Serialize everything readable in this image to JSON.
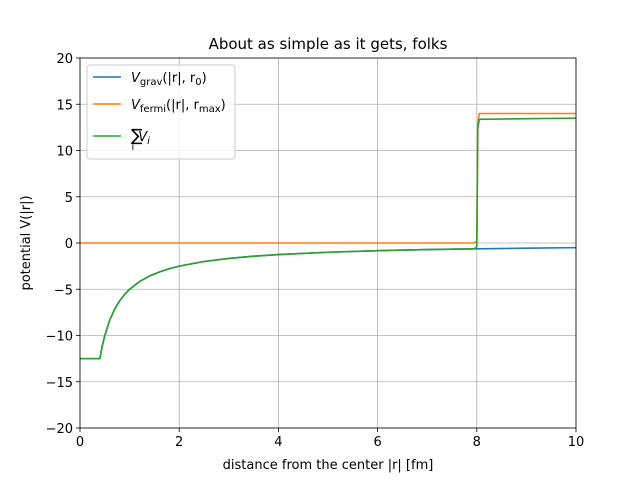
{
  "chart_data": {
    "type": "line",
    "title": "About as simple as it gets, folks",
    "xlabel": "distance from the center |r| [fm]",
    "ylabel": "potential V(|r|)",
    "xlim": [
      0,
      10
    ],
    "ylim": [
      -20,
      20
    ],
    "xticks": [
      0,
      2,
      4,
      6,
      8,
      10
    ],
    "yticks": [
      -20,
      -15,
      -10,
      -5,
      0,
      5,
      10,
      15,
      20
    ],
    "grid": true,
    "legend_position": "upper-left",
    "series": [
      {
        "name": "V_grav(|r|, r_0)",
        "legend": {
          "base": "V",
          "sub": "grav",
          "args": "(|r|, r",
          "argsub": "0",
          "close": ")"
        },
        "color": "#1f77b4",
        "x": [
          0,
          0.4,
          0.45,
          0.5,
          0.6,
          0.7,
          0.8,
          0.9,
          1.0,
          1.2,
          1.4,
          1.6,
          1.8,
          2.0,
          2.5,
          3.0,
          3.5,
          4.0,
          5.0,
          6.0,
          7.0,
          8.0,
          9.0,
          10.0
        ],
        "y": [
          -12.5,
          -12.5,
          -11.1,
          -10.0,
          -8.33,
          -7.14,
          -6.25,
          -5.56,
          -5.0,
          -4.17,
          -3.57,
          -3.13,
          -2.78,
          -2.5,
          -2.0,
          -1.67,
          -1.43,
          -1.25,
          -1.0,
          -0.83,
          -0.71,
          -0.63,
          -0.56,
          -0.5
        ]
      },
      {
        "name": "V_fermi(|r|, r_max)",
        "legend": {
          "base": "V",
          "sub": "fermi",
          "args": "(|r|, r",
          "argsub": "max",
          "close": ")"
        },
        "color": "#ff7f0e",
        "x": [
          0,
          7.95,
          8.0,
          8.02,
          8.05,
          10.0
        ],
        "y": [
          0,
          0,
          0.2,
          13.0,
          14.0,
          14.0
        ]
      },
      {
        "name": "Σ_i V_i",
        "legend": {
          "base": "∑",
          "sub": "i",
          "args": "V",
          "argsub": "i",
          "close": ""
        },
        "color": "#2ca02c",
        "x": [
          0,
          0.4,
          0.45,
          0.5,
          0.6,
          0.7,
          0.8,
          0.9,
          1.0,
          1.2,
          1.4,
          1.6,
          1.8,
          2.0,
          2.5,
          3.0,
          3.5,
          4.0,
          5.0,
          6.0,
          7.0,
          7.95,
          8.0,
          8.02,
          8.05,
          9.0,
          10.0
        ],
        "y": [
          -12.5,
          -12.5,
          -11.1,
          -10.0,
          -8.33,
          -7.14,
          -6.25,
          -5.56,
          -5.0,
          -4.17,
          -3.57,
          -3.13,
          -2.78,
          -2.5,
          -2.0,
          -1.67,
          -1.43,
          -1.25,
          -1.0,
          -0.83,
          -0.71,
          -0.63,
          -0.4,
          12.4,
          13.37,
          13.44,
          13.5
        ]
      }
    ]
  }
}
